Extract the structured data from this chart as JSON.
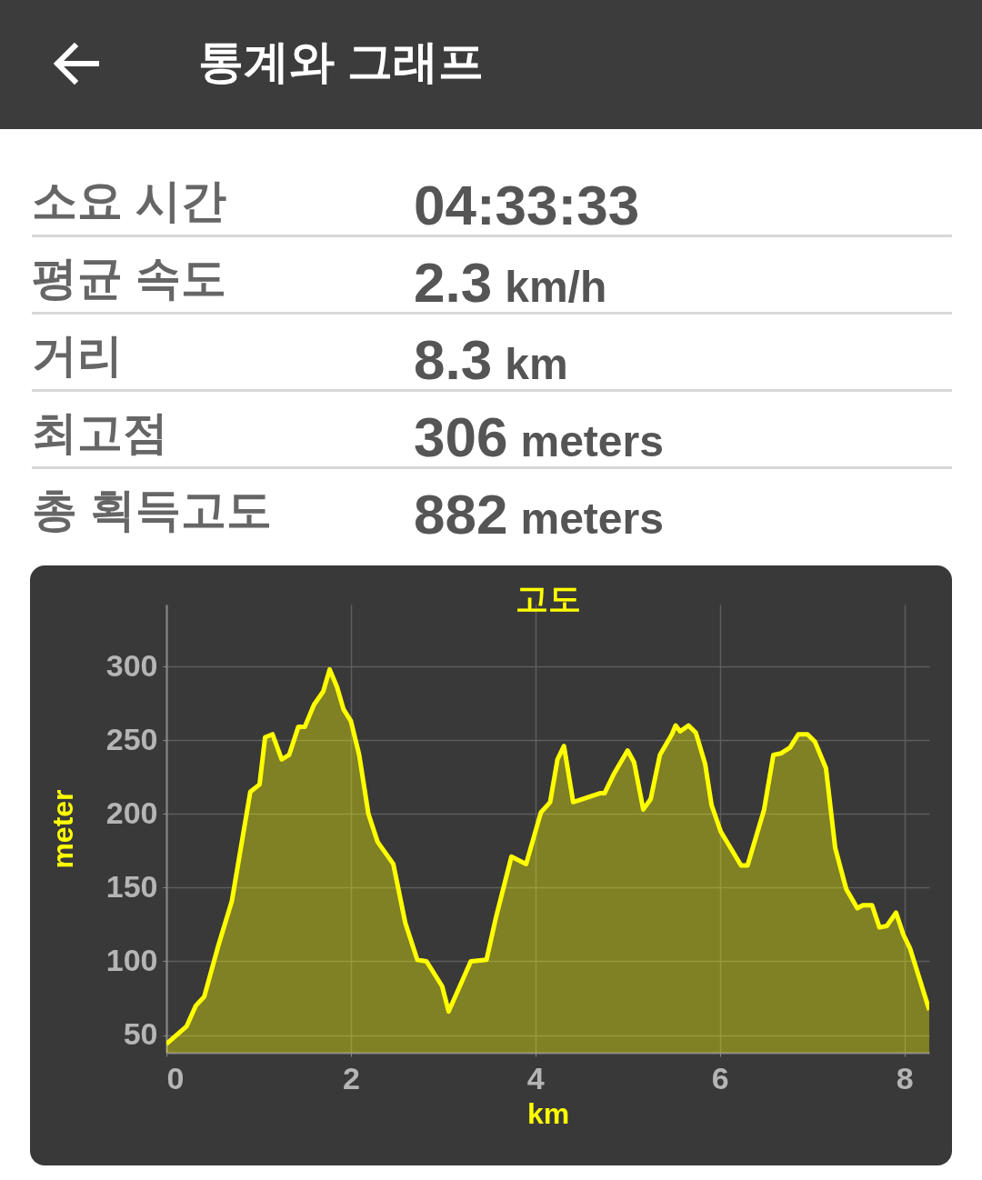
{
  "chart_data": [
    {
      "type": "other",
      "title": "통계와 그래프",
      "annotations": [
        "소요 시간",
        "04:33:33",
        "평균 속도",
        "2.3 km/h",
        "거리",
        "8.3 km",
        "최고점",
        "306 meters",
        "총 획득고도",
        "882 meters"
      ]
    },
    {
      "type": "area",
      "title": "고도",
      "xlabel": "km",
      "ylabel": "meter",
      "xlim": [
        0,
        8.27
      ],
      "ylim": [
        38,
        342
      ],
      "xticks": [
        0,
        2,
        4,
        6,
        8
      ],
      "yticks": [
        50,
        100,
        150,
        200,
        250,
        300
      ],
      "grid": true,
      "x": [
        0,
        0.22,
        0.32,
        0.41,
        0.56,
        0.71,
        0.91,
        1.01,
        1.07,
        1.15,
        1.25,
        1.33,
        1.43,
        1.5,
        1.6,
        1.7,
        1.77,
        1.85,
        1.92,
        2.0,
        2.09,
        2.19,
        2.29,
        2.46,
        2.59,
        2.72,
        2.82,
        2.99,
        3.06,
        3.3,
        3.47,
        3.57,
        3.74,
        3.9,
        4.06,
        4.16,
        4.24,
        4.31,
        4.41,
        4.7,
        4.75,
        4.85,
        5.0,
        5.07,
        5.17,
        5.25,
        5.35,
        5.48,
        5.52,
        5.57,
        5.66,
        5.74,
        5.84,
        5.91,
        6.01,
        6.23,
        6.3,
        6.48,
        6.58,
        6.66,
        6.76,
        6.85,
        6.95,
        7.03,
        7.15,
        7.25,
        7.37,
        7.49,
        7.55,
        7.65,
        7.73,
        7.81,
        7.91,
        7.99,
        8.06,
        8.27
      ],
      "series": [
        {
          "color": "#ffff00",
          "values": [
            44,
            56,
            70,
            76,
            110,
            141,
            215,
            220,
            252,
            254,
            237,
            240,
            259,
            259,
            274,
            283,
            298,
            286,
            271,
            263,
            240,
            200,
            181,
            166,
            126,
            101,
            100,
            83,
            66,
            100,
            101,
            129,
            171,
            166,
            201,
            208,
            237,
            246,
            208,
            214,
            214,
            227,
            243,
            235,
            203,
            210,
            240,
            254,
            260,
            256,
            260,
            255,
            234,
            206,
            188,
            165,
            165,
            203,
            240,
            241,
            245,
            254,
            254,
            249,
            231,
            177,
            149,
            136,
            138,
            138,
            123,
            124,
            133,
            118,
            109,
            67
          ]
        }
      ]
    }
  ]
}
